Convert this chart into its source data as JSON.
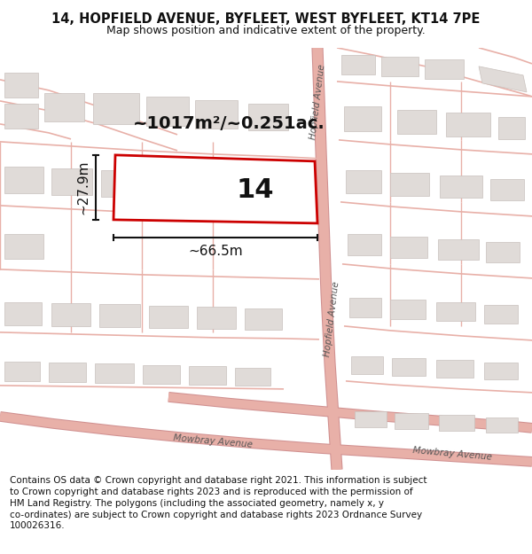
{
  "title": "14, HOPFIELD AVENUE, BYFLEET, WEST BYFLEET, KT14 7PE",
  "subtitle": "Map shows position and indicative extent of the property.",
  "footer": "Contains OS data © Crown copyright and database right 2021. This information is subject\nto Crown copyright and database rights 2023 and is reproduced with the permission of\nHM Land Registry. The polygons (including the associated geometry, namely x, y\nco-ordinates) are subject to Crown copyright and database rights 2023 Ordnance Survey\n100026316.",
  "map_bg": "#f7f4f1",
  "road_color": "#e8a8a0",
  "road_lw": 1.0,
  "building_fill": "#e0dbd8",
  "building_edge": "#c8c0bc",
  "plot_edge": "#cc0000",
  "plot_fill": "#ffffff",
  "text_dark": "#111111",
  "text_street": "#555555",
  "area_label": "~1017m²/~0.251ac.",
  "width_label": "~66.5m",
  "height_label": "~27.9m",
  "number_label": "14",
  "hopfield_label": "Hopfield Avenue",
  "mowbray_label": "Mowbray Avenue",
  "title_fontsize": 10.5,
  "subtitle_fontsize": 9.0,
  "footer_fontsize": 7.5,
  "area_fontsize": 14.0,
  "number_fontsize": 22.0,
  "dim_fontsize": 11.0,
  "street_fontsize": 7.5
}
